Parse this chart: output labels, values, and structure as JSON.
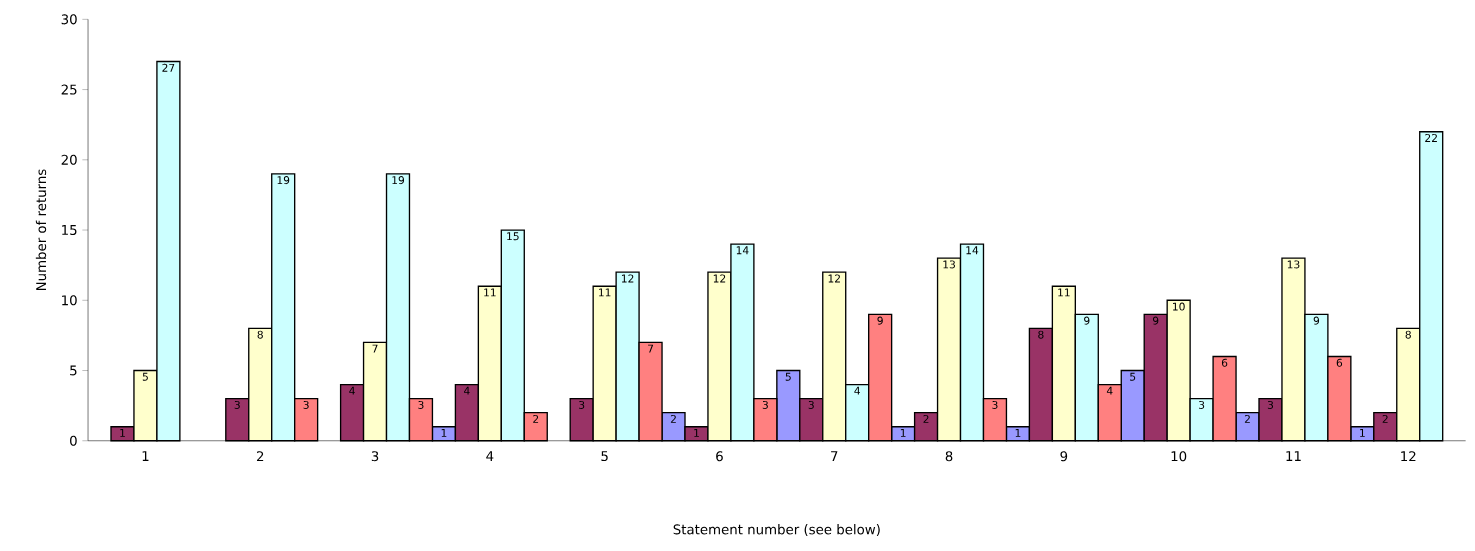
{
  "chart_data": {
    "type": "bar",
    "xlabel": "Statement number (see below)",
    "ylabel": "Number of returns",
    "categories": [
      "1",
      "2",
      "3",
      "4",
      "5",
      "6",
      "7",
      "8",
      "9",
      "10",
      "11",
      "12"
    ],
    "series": [
      {
        "color": "#9999ff",
        "values": [
          null,
          null,
          null,
          1,
          null,
          2,
          5,
          1,
          1,
          5,
          2,
          1
        ]
      },
      {
        "color": "#993366",
        "values": [
          1,
          3,
          4,
          4,
          3,
          1,
          3,
          2,
          8,
          9,
          3,
          2
        ]
      },
      {
        "color": "#ffffcc",
        "values": [
          5,
          8,
          7,
          11,
          11,
          12,
          12,
          13,
          11,
          10,
          13,
          8
        ]
      },
      {
        "color": "#ccffff",
        "values": [
          27,
          19,
          19,
          15,
          12,
          14,
          4,
          14,
          9,
          3,
          9,
          22
        ]
      },
      {
        "color": "#ff8080",
        "values": [
          null,
          3,
          3,
          2,
          7,
          3,
          9,
          3,
          4,
          6,
          6,
          null
        ]
      }
    ],
    "ylim": [
      0,
      30
    ],
    "yticks": [
      0,
      5,
      10,
      15,
      20,
      25,
      30
    ],
    "grid": false,
    "data_labels": true
  }
}
